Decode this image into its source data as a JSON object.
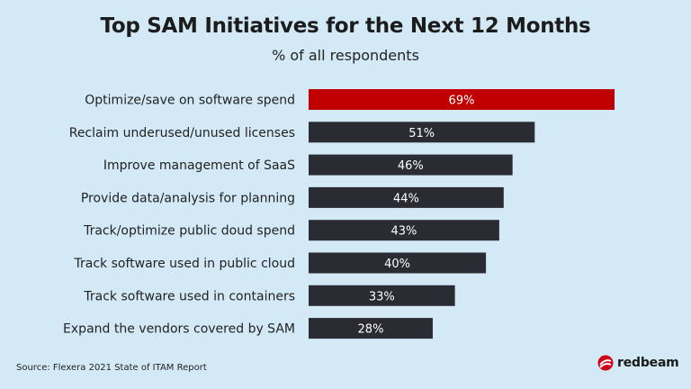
{
  "chart_data": {
    "type": "bar",
    "orientation": "horizontal",
    "title": "Top SAM Initiatives for the Next 12 Months",
    "subtitle": "% of all respondents",
    "categories": [
      "Optimize/save on software spend",
      "Reclaim underused/unused licenses",
      "Improve management of SaaS",
      "Provide data/analysis for planning",
      "Track/optimize public doud spend",
      "Track software used in public cloud",
      "Track software used in containers",
      "Expand the vendors covered by SAM"
    ],
    "values": [
      69,
      51,
      46,
      44,
      43,
      40,
      33,
      28
    ],
    "value_labels": [
      "69%",
      "51%",
      "46%",
      "44%",
      "43%",
      "40%",
      "33%",
      "28%"
    ],
    "xlim": [
      0,
      69
    ],
    "highlight_index": 0,
    "colors": {
      "highlight": "#c00000",
      "bar": "#2b2c33",
      "label": "#ffffff"
    },
    "grid": false,
    "legend": "none"
  },
  "source": "Source: Flexera 2021 State of ITAM Report",
  "logo": {
    "text": "redbeam",
    "color": "#d0021b"
  }
}
